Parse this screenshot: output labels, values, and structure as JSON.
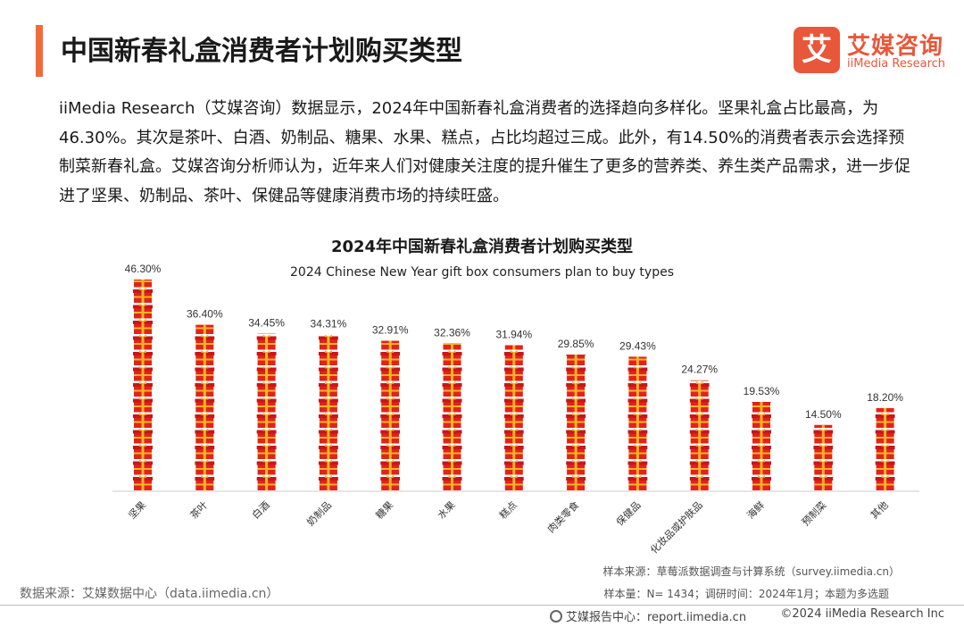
{
  "header": {
    "title": "中国新春礼盒消费者计划购买类型",
    "accent_color": "#f26a3a"
  },
  "logo": {
    "mark": "艾",
    "name_cn": "艾媒咨询",
    "name_en": "iiMedia Research",
    "color": "#e9573a"
  },
  "intro": {
    "text": "iiMedia Research（艾媒咨询）数据显示，2024年中国新春礼盒消费者的选择趋向多样化。坚果礼盒占比最高，为46.30%。其次是茶叶、白酒、奶制品、糖果、水果、糕点，占比均超过三成。此外，有14.50%的消费者表示会选择预制菜新春礼盒。艾媒咨询分析师认为，近年来人们对健康关注度的提升催生了更多的营养类、养生类产品需求，进一步促进了坚果、奶制品、茶叶、保健品等健康消费市场的持续旺盛。"
  },
  "chart_data": {
    "type": "bar",
    "title": "2024年中国新春礼盒消费者计划购买类型",
    "subtitle": "2024 Chinese New Year gift box consumers plan to buy types",
    "categories": [
      "坚果",
      "茶叶",
      "白酒",
      "奶制品",
      "糖果",
      "水果",
      "糕点",
      "肉类零食",
      "保健品",
      "化妆品或护肤品",
      "海鲜",
      "预制菜",
      "其他"
    ],
    "values": [
      46.3,
      36.4,
      34.45,
      34.31,
      32.91,
      32.36,
      31.94,
      29.85,
      29.43,
      24.27,
      19.53,
      14.5,
      18.2
    ],
    "value_labels": [
      "46.30%",
      "36.40%",
      "34.45%",
      "34.31%",
      "32.91%",
      "32.36%",
      "31.94%",
      "29.85%",
      "29.43%",
      "24.27%",
      "19.53%",
      "14.50%",
      "18.20%"
    ],
    "unit": "%",
    "ylim": [
      0,
      50
    ],
    "grid": false,
    "mark_style": "stacked gift-box pictogram",
    "colors": {
      "box": "#e2231a",
      "box_dark": "#c8161a",
      "ribbon": "#f7b329",
      "axis": "#cccccc"
    }
  },
  "notes": {
    "sample_source": "样本来源：草莓派数据调查与计算系统（survey.iimedia.cn）",
    "sample_size": "样本量：N= 1434；调研时间：2024年1月；本题为多选题",
    "data_source": "数据来源：艾媒数据中心（data.iimedia.cn）"
  },
  "footer": {
    "center": "艾媒报告中心：report.iimedia.cn",
    "copyright": "©2024  iiMedia Research  Inc"
  }
}
